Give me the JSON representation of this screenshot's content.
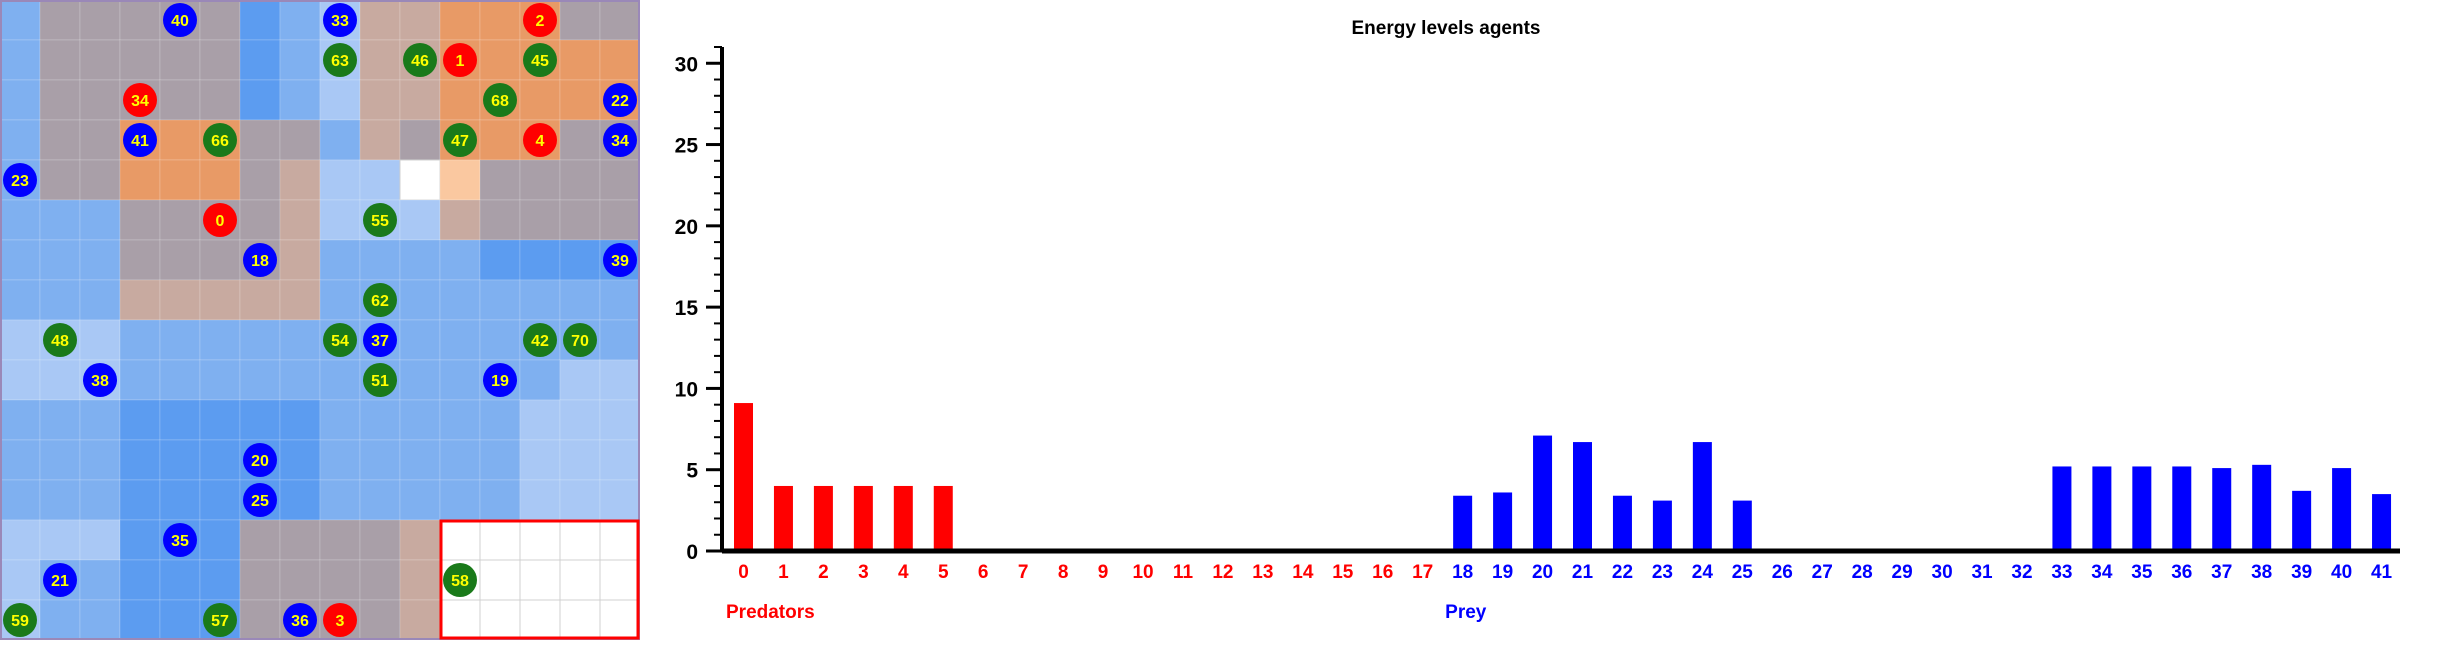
{
  "colors": {
    "predator": "#ff0000",
    "prey": "#0000ff",
    "plant": "#1a7a1a",
    "agent_label": "#ffff00",
    "water_light": "#a9c8f5",
    "water_mid": "#7fb0f0",
    "water_deep": "#5c9cf0",
    "land_grey": "#a99fa8",
    "land_tan": "#c8aaa0",
    "land_orange": "#e89a66",
    "land_peach": "#fac8a0",
    "empty": "#ffffff",
    "border_red": "#ff0000"
  },
  "grid": {
    "cols": 16,
    "rows": 16,
    "cells": [
      [
        "wm",
        "g",
        "g",
        "g",
        "g",
        "g",
        "wd",
        "wm",
        "wl",
        "t",
        "t",
        "o",
        "o",
        "o",
        "g",
        "g"
      ],
      [
        "wm",
        "g",
        "g",
        "g",
        "g",
        "g",
        "wd",
        "wm",
        "wl",
        "t",
        "t",
        "o",
        "o",
        "o",
        "o",
        "o"
      ],
      [
        "wm",
        "g",
        "g",
        "g",
        "g",
        "g",
        "wd",
        "wm",
        "wl",
        "t",
        "t",
        "o",
        "o",
        "o",
        "o",
        "o"
      ],
      [
        "wm",
        "g",
        "g",
        "o",
        "o",
        "o",
        "g",
        "g",
        "wm",
        "t",
        "g",
        "o",
        "o",
        "o",
        "g",
        "g"
      ],
      [
        "wm",
        "g",
        "g",
        "o",
        "o",
        "o",
        "g",
        "t",
        "wl",
        "wl",
        "e",
        "p",
        "g",
        "g",
        "g",
        "g"
      ],
      [
        "wm",
        "wm",
        "wm",
        "g",
        "g",
        "g",
        "g",
        "t",
        "wl",
        "wl",
        "wl",
        "t",
        "g",
        "g",
        "g",
        "g"
      ],
      [
        "wm",
        "wm",
        "wm",
        "g",
        "g",
        "g",
        "g",
        "t",
        "wm",
        "wm",
        "wm",
        "wm",
        "wd",
        "wd",
        "wd",
        "wd"
      ],
      [
        "wm",
        "wm",
        "wm",
        "t",
        "t",
        "t",
        "t",
        "t",
        "wm",
        "wm",
        "wm",
        "wm",
        "wm",
        "wm",
        "wm",
        "wm"
      ],
      [
        "wl",
        "wl",
        "wl",
        "wm",
        "wm",
        "wm",
        "wm",
        "wm",
        "wm",
        "wm",
        "wm",
        "wm",
        "wm",
        "wm",
        "wm",
        "wm"
      ],
      [
        "wl",
        "wl",
        "wl",
        "wm",
        "wm",
        "wm",
        "wm",
        "wm",
        "wm",
        "wm",
        "wm",
        "wm",
        "wm",
        "wm",
        "wl",
        "wl"
      ],
      [
        "wm",
        "wm",
        "wm",
        "wd",
        "wd",
        "wd",
        "wd",
        "wd",
        "wm",
        "wm",
        "wm",
        "wm",
        "wm",
        "wl",
        "wl",
        "wl"
      ],
      [
        "wm",
        "wm",
        "wm",
        "wd",
        "wd",
        "wd",
        "wd",
        "wd",
        "wm",
        "wm",
        "wm",
        "wm",
        "wm",
        "wl",
        "wl",
        "wl"
      ],
      [
        "wm",
        "wm",
        "wm",
        "wd",
        "wd",
        "wd",
        "wd",
        "wd",
        "wm",
        "wm",
        "wm",
        "wm",
        "wm",
        "wl",
        "wl",
        "wl"
      ],
      [
        "wl",
        "wl",
        "wl",
        "wd",
        "wd",
        "wd",
        "g",
        "g",
        "g",
        "g",
        "t",
        "e",
        "e",
        "e",
        "e",
        "e"
      ],
      [
        "wl",
        "wm",
        "wm",
        "wd",
        "wd",
        "wd",
        "g",
        "g",
        "g",
        "g",
        "t",
        "e",
        "e",
        "e",
        "e",
        "e"
      ],
      [
        "wl",
        "wm",
        "wm",
        "wd",
        "wd",
        "wd",
        "g",
        "g",
        "g",
        "g",
        "t",
        "e",
        "e",
        "e",
        "e",
        "e"
      ]
    ],
    "agents": [
      {
        "id": "40",
        "kind": "prey",
        "col": 4,
        "row": 0
      },
      {
        "id": "33",
        "kind": "prey",
        "col": 8,
        "row": 0
      },
      {
        "id": "2",
        "kind": "predator",
        "col": 13,
        "row": 0
      },
      {
        "id": "63",
        "kind": "plant",
        "col": 8,
        "row": 1
      },
      {
        "id": "46",
        "kind": "plant",
        "col": 10,
        "row": 1
      },
      {
        "id": "1",
        "kind": "predator",
        "col": 11,
        "row": 1
      },
      {
        "id": "45",
        "kind": "plant",
        "col": 13,
        "row": 1
      },
      {
        "id": "34",
        "kind": "predator",
        "col": 3,
        "row": 2
      },
      {
        "id": "68",
        "kind": "plant",
        "col": 12,
        "row": 2
      },
      {
        "id": "22",
        "kind": "prey",
        "col": 15,
        "row": 2
      },
      {
        "id": "41",
        "kind": "prey",
        "col": 3,
        "row": 3
      },
      {
        "id": "66",
        "kind": "plant",
        "col": 5,
        "row": 3
      },
      {
        "id": "47",
        "kind": "plant",
        "col": 11,
        "row": 3
      },
      {
        "id": "4",
        "kind": "predator",
        "col": 13,
        "row": 3
      },
      {
        "id": "34",
        "kind": "prey",
        "col": 15,
        "row": 3
      },
      {
        "id": "23",
        "kind": "prey",
        "col": 0,
        "row": 4
      },
      {
        "id": "0",
        "kind": "predator",
        "col": 5,
        "row": 5
      },
      {
        "id": "55",
        "kind": "plant",
        "col": 9,
        "row": 5
      },
      {
        "id": "18",
        "kind": "prey",
        "col": 6,
        "row": 6
      },
      {
        "id": "39",
        "kind": "prey",
        "col": 15,
        "row": 6
      },
      {
        "id": "62",
        "kind": "plant",
        "col": 9,
        "row": 7
      },
      {
        "id": "48",
        "kind": "plant",
        "col": 1,
        "row": 8
      },
      {
        "id": "54",
        "kind": "plant",
        "col": 8,
        "row": 8
      },
      {
        "id": "37",
        "kind": "prey",
        "col": 9,
        "row": 8
      },
      {
        "id": "42",
        "kind": "plant",
        "col": 13,
        "row": 8
      },
      {
        "id": "70",
        "kind": "plant",
        "col": 14,
        "row": 8
      },
      {
        "id": "38",
        "kind": "prey",
        "col": 2,
        "row": 9
      },
      {
        "id": "51",
        "kind": "plant",
        "col": 9,
        "row": 9
      },
      {
        "id": "19",
        "kind": "prey",
        "col": 12,
        "row": 9
      },
      {
        "id": "20",
        "kind": "prey",
        "col": 6,
        "row": 11
      },
      {
        "id": "25",
        "kind": "prey",
        "col": 6,
        "row": 12
      },
      {
        "id": "35",
        "kind": "prey",
        "col": 4,
        "row": 13
      },
      {
        "id": "21",
        "kind": "prey",
        "col": 1,
        "row": 14
      },
      {
        "id": "58",
        "kind": "plant",
        "col": 11,
        "row": 14
      },
      {
        "id": "59",
        "kind": "plant",
        "col": 0,
        "row": 15
      },
      {
        "id": "57",
        "kind": "plant",
        "col": 5,
        "row": 15
      },
      {
        "id": "36",
        "kind": "prey",
        "col": 7,
        "row": 15
      },
      {
        "id": "3",
        "kind": "predator",
        "col": 8,
        "row": 15
      }
    ]
  },
  "chart_data": {
    "type": "bar",
    "title": "Energy levels agents",
    "xlabel": "",
    "ylabel": "",
    "ylim": [
      0,
      31
    ],
    "y_ticks": [
      0,
      5,
      10,
      15,
      20,
      25,
      30
    ],
    "categories": [
      "0",
      "1",
      "2",
      "3",
      "4",
      "5",
      "6",
      "7",
      "8",
      "9",
      "10",
      "11",
      "12",
      "13",
      "14",
      "15",
      "16",
      "17",
      "18",
      "19",
      "20",
      "21",
      "22",
      "23",
      "24",
      "25",
      "26",
      "27",
      "28",
      "29",
      "30",
      "31",
      "32",
      "33",
      "34",
      "35",
      "36",
      "37",
      "38",
      "39",
      "40",
      "41"
    ],
    "values": [
      9.1,
      4,
      4,
      4,
      4,
      4,
      0,
      0,
      0,
      0,
      0,
      0,
      0,
      0,
      0,
      0,
      0,
      0,
      3.4,
      3.6,
      7.1,
      6.7,
      3.4,
      3.1,
      6.7,
      3.1,
      0,
      0,
      0,
      0,
      0,
      0,
      0,
      5.2,
      5.2,
      5.2,
      5.2,
      5.1,
      5.3,
      3.7,
      5.1,
      3.5
    ],
    "groups": [
      {
        "name": "Predators",
        "from": 0,
        "to": 17,
        "color": "#ff0000"
      },
      {
        "name": "Prey",
        "from": 18,
        "to": 41,
        "color": "#0000ff"
      }
    ],
    "grid": false,
    "legend": "none"
  }
}
